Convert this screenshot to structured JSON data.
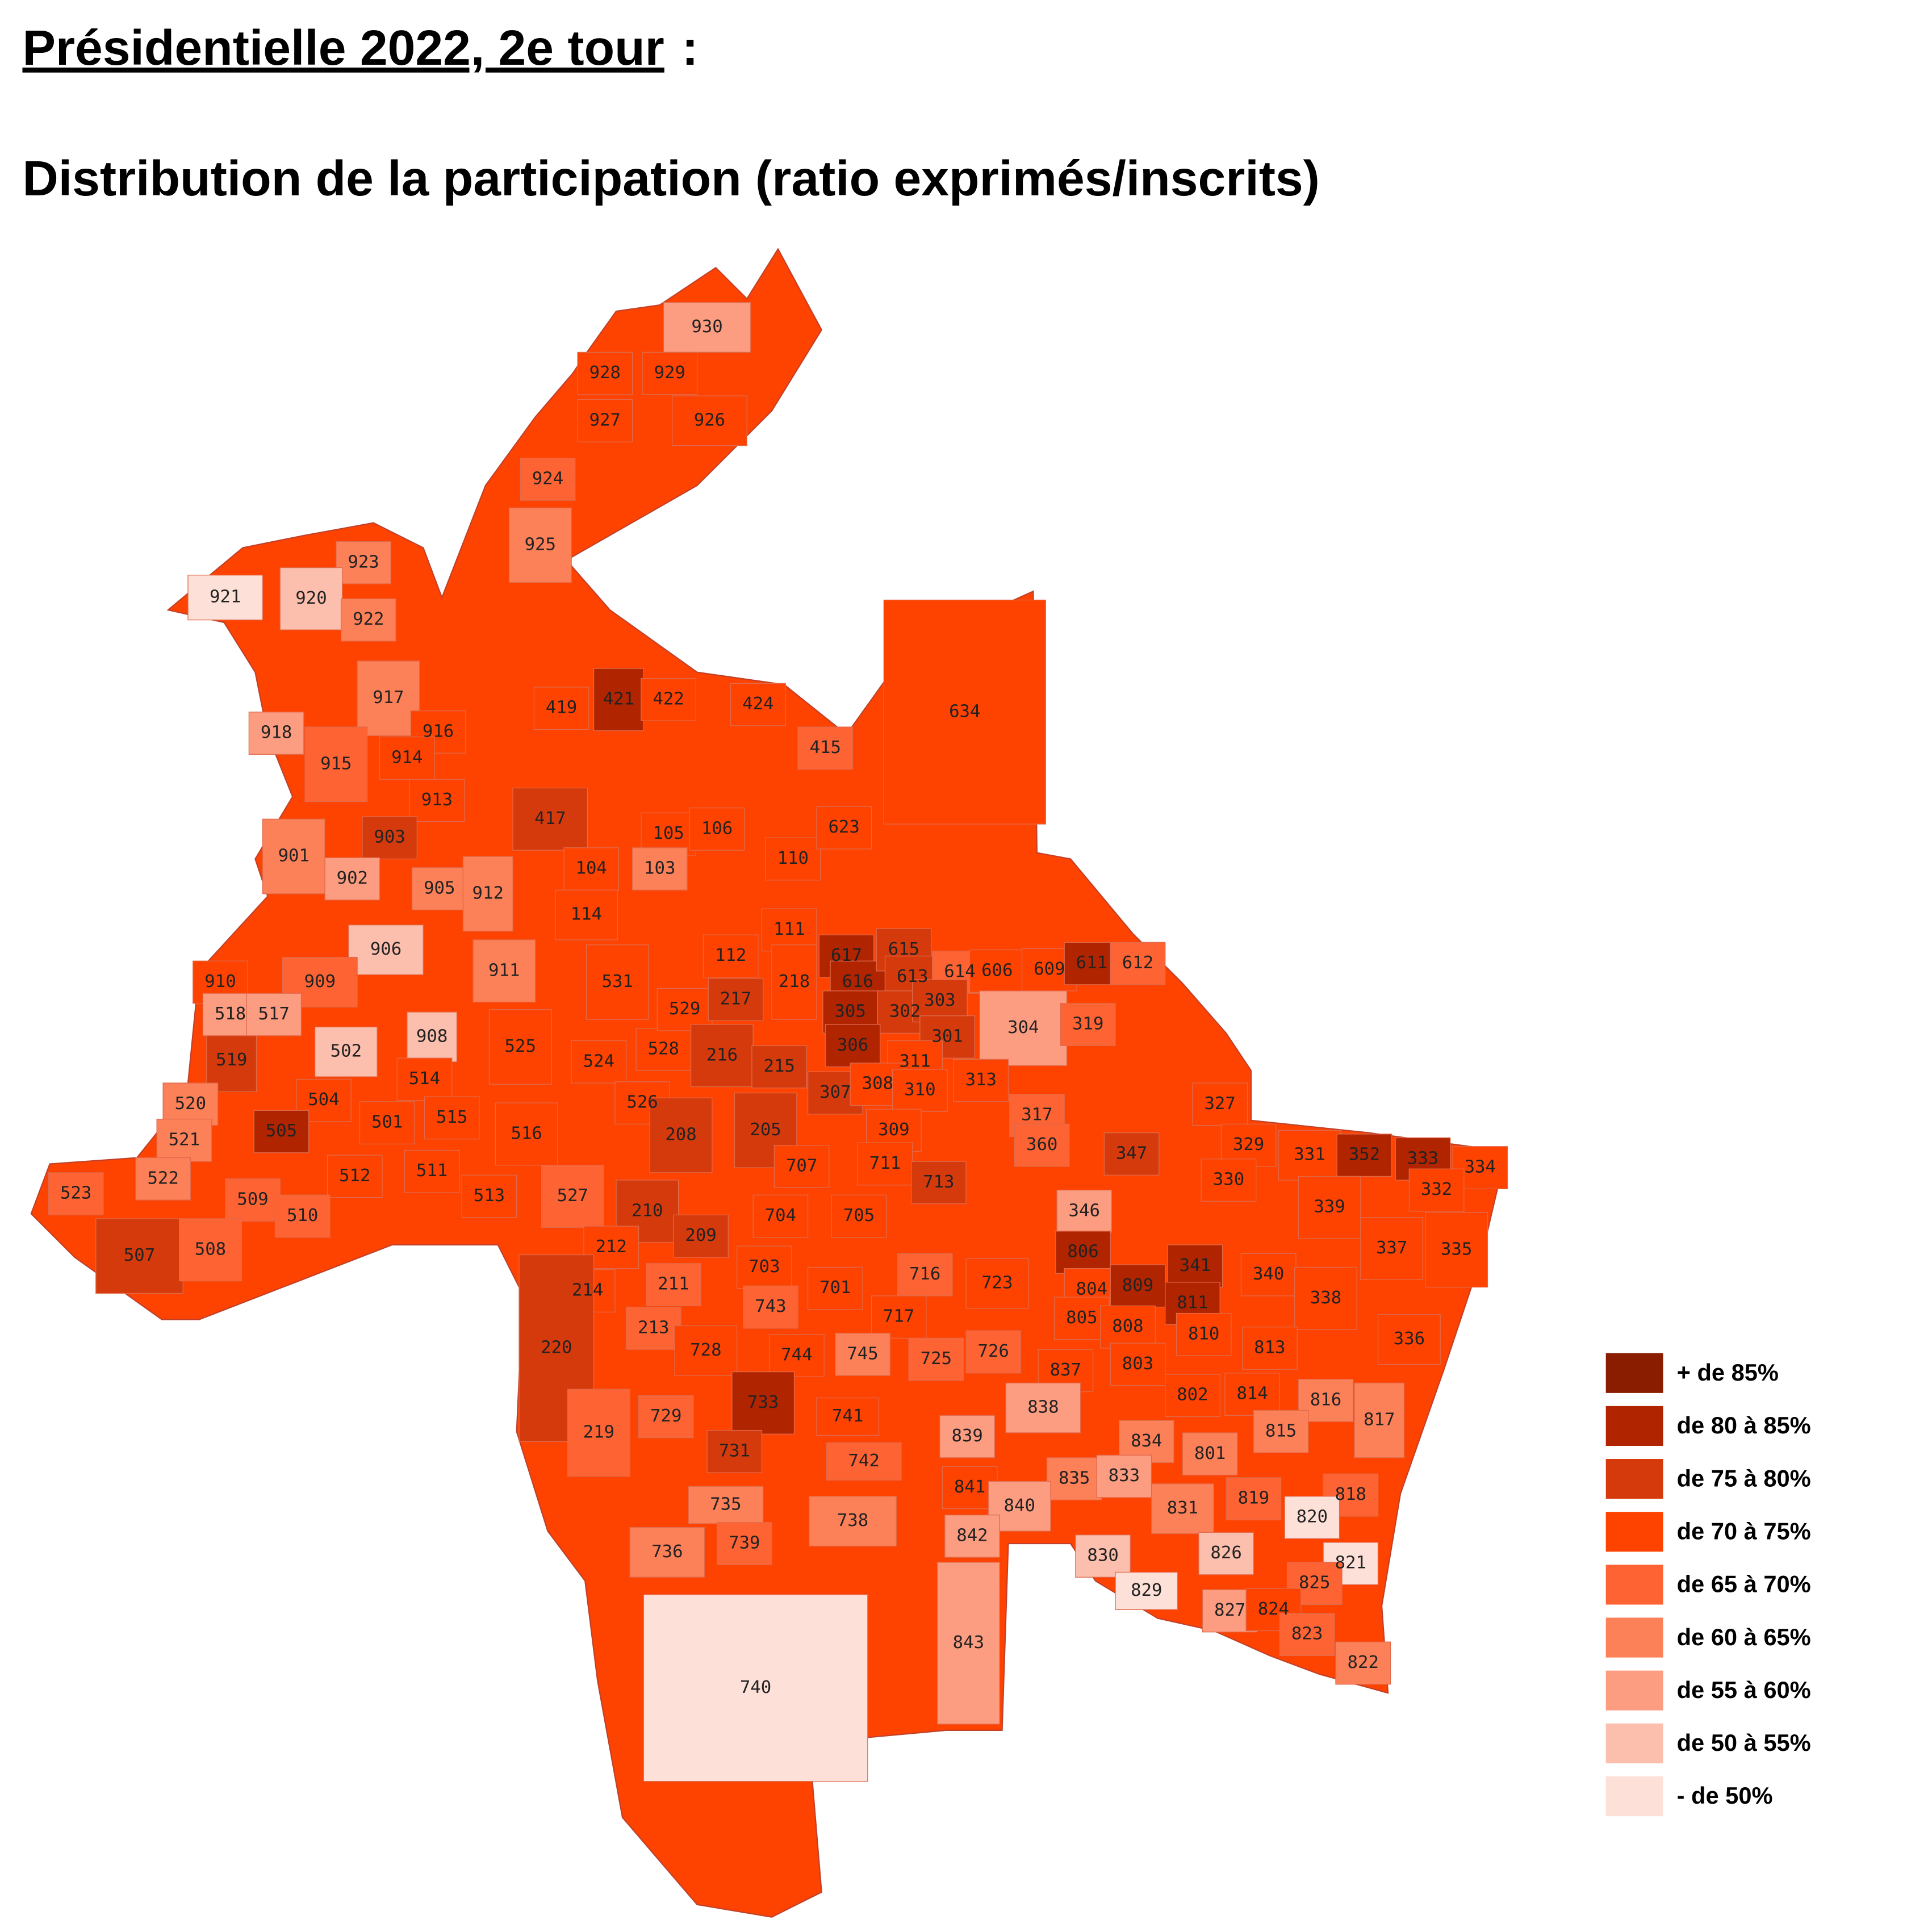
{
  "header": {
    "title": "Présidentielle 2022, 2e tour",
    "title_suffix": ":",
    "subtitle": "Distribution de la participation (ratio exprimés/inscrits)"
  },
  "legend": [
    {
      "label": "+ de 85%",
      "color": "#8a1c00"
    },
    {
      "label": "de 80 à 85%",
      "color": "#b02400"
    },
    {
      "label": "de 75 à 80%",
      "color": "#d53a0c"
    },
    {
      "label": "de 70 à 75%",
      "color": "#fe4200"
    },
    {
      "label": "de 65 à 70%",
      "color": "#fd6333"
    },
    {
      "label": "de 60 à 65%",
      "color": "#fc8058"
    },
    {
      "label": "de 55 à 60%",
      "color": "#fc9c80"
    },
    {
      "label": "de 50 à 55%",
      "color": "#fcbead"
    },
    {
      "label": "- de 50%",
      "color": "#fde0d8"
    }
  ],
  "regions": [
    {
      "label": "930",
      "class": 6
    },
    {
      "label": "928",
      "class": 3
    },
    {
      "label": "929",
      "class": 3
    },
    {
      "label": "927",
      "class": 3
    },
    {
      "label": "926",
      "class": 3
    },
    {
      "label": "924",
      "class": 4
    },
    {
      "label": "925",
      "class": 5
    },
    {
      "label": "923",
      "class": 5
    },
    {
      "label": "921",
      "class": 8
    },
    {
      "label": "920",
      "class": 7
    },
    {
      "label": "922",
      "class": 5
    },
    {
      "label": "917",
      "class": 5
    },
    {
      "label": "916",
      "class": 3
    },
    {
      "label": "914",
      "class": 3
    },
    {
      "label": "915",
      "class": 4
    },
    {
      "label": "918",
      "class": 6
    },
    {
      "label": "913",
      "class": 3
    },
    {
      "label": "903",
      "class": 2
    },
    {
      "label": "901",
      "class": 5
    },
    {
      "label": "902",
      "class": 6
    },
    {
      "label": "905",
      "class": 5
    },
    {
      "label": "912",
      "class": 5
    },
    {
      "label": "906",
      "class": 7
    },
    {
      "label": "911",
      "class": 5
    },
    {
      "label": "909",
      "class": 4
    },
    {
      "label": "910",
      "class": 3
    },
    {
      "label": "908",
      "class": 7
    },
    {
      "label": "519",
      "class": 2
    },
    {
      "label": "518",
      "class": 6
    },
    {
      "label": "517",
      "class": 6
    },
    {
      "label": "502",
      "class": 7
    },
    {
      "label": "514",
      "class": 3
    },
    {
      "label": "504",
      "class": 3
    },
    {
      "label": "520",
      "class": 5
    },
    {
      "label": "505",
      "class": 1
    },
    {
      "label": "501",
      "class": 3
    },
    {
      "label": "515",
      "class": 3
    },
    {
      "label": "516",
      "class": 3
    },
    {
      "label": "511",
      "class": 3
    },
    {
      "label": "512",
      "class": 3
    },
    {
      "label": "513",
      "class": 3
    },
    {
      "label": "521",
      "class": 5
    },
    {
      "label": "522",
      "class": 5
    },
    {
      "label": "523",
      "class": 4
    },
    {
      "label": "509",
      "class": 4
    },
    {
      "label": "510",
      "class": 4
    },
    {
      "label": "507",
      "class": 2
    },
    {
      "label": "508",
      "class": 4
    },
    {
      "label": "527",
      "class": 4
    },
    {
      "label": "525",
      "class": 3
    },
    {
      "label": "524",
      "class": 3
    },
    {
      "label": "526",
      "class": 3
    },
    {
      "label": "528",
      "class": 3
    },
    {
      "label": "529",
      "class": 3
    },
    {
      "label": "531",
      "class": 3
    },
    {
      "label": "419",
      "class": 3
    },
    {
      "label": "421",
      "class": 1
    },
    {
      "label": "422",
      "class": 3
    },
    {
      "label": "424",
      "class": 3
    },
    {
      "label": "415",
      "class": 4
    },
    {
      "label": "417",
      "class": 2
    },
    {
      "label": "105",
      "class": 3
    },
    {
      "label": "106",
      "class": 3
    },
    {
      "label": "103",
      "class": 5
    },
    {
      "label": "104",
      "class": 3
    },
    {
      "label": "110",
      "class": 3
    },
    {
      "label": "114",
      "class": 3
    },
    {
      "label": "111",
      "class": 3
    },
    {
      "label": "112",
      "class": 3
    },
    {
      "label": "218",
      "class": 3
    },
    {
      "label": "217",
      "class": 2
    },
    {
      "label": "216",
      "class": 2
    },
    {
      "label": "215",
      "class": 2
    },
    {
      "label": "208",
      "class": 2
    },
    {
      "label": "205",
      "class": 2
    },
    {
      "label": "210",
      "class": 2
    },
    {
      "label": "209",
      "class": 2
    },
    {
      "label": "212",
      "class": 3
    },
    {
      "label": "214",
      "class": 3
    },
    {
      "label": "211",
      "class": 4
    },
    {
      "label": "213",
      "class": 4
    },
    {
      "label": "220",
      "class": 2
    },
    {
      "label": "219",
      "class": 4
    },
    {
      "label": "623",
      "class": 3
    },
    {
      "label": "634",
      "class": 3
    },
    {
      "label": "617",
      "class": 1
    },
    {
      "label": "616",
      "class": 1
    },
    {
      "label": "615",
      "class": 2
    },
    {
      "label": "613",
      "class": 2
    },
    {
      "label": "614",
      "class": 4
    },
    {
      "label": "606",
      "class": 3
    },
    {
      "label": "609",
      "class": 3
    },
    {
      "label": "611",
      "class": 1
    },
    {
      "label": "612",
      "class": 4
    },
    {
      "label": "305",
      "class": 1
    },
    {
      "label": "302",
      "class": 2
    },
    {
      "label": "303",
      "class": 2
    },
    {
      "label": "306",
      "class": 1
    },
    {
      "label": "301",
      "class": 2
    },
    {
      "label": "304",
      "class": 6
    },
    {
      "label": "319",
      "class": 4
    },
    {
      "label": "311",
      "class": 3
    },
    {
      "label": "313",
      "class": 3
    },
    {
      "label": "307",
      "class": 2
    },
    {
      "label": "308",
      "class": 3
    },
    {
      "label": "310",
      "class": 3
    },
    {
      "label": "309",
      "class": 3
    },
    {
      "label": "317",
      "class": 4
    },
    {
      "label": "327",
      "class": 3
    },
    {
      "label": "360",
      "class": 4
    },
    {
      "label": "707",
      "class": 3
    },
    {
      "label": "711",
      "class": 3
    },
    {
      "label": "713",
      "class": 2
    },
    {
      "label": "329",
      "class": 3
    },
    {
      "label": "331",
      "class": 3
    },
    {
      "label": "352",
      "class": 1
    },
    {
      "label": "333",
      "class": 1
    },
    {
      "label": "334",
      "class": 3
    },
    {
      "label": "347",
      "class": 2
    },
    {
      "label": "330",
      "class": 3
    },
    {
      "label": "332",
      "class": 3
    },
    {
      "label": "339",
      "class": 3
    },
    {
      "label": "346",
      "class": 6
    },
    {
      "label": "704",
      "class": 3
    },
    {
      "label": "705",
      "class": 3
    },
    {
      "label": "337",
      "class": 3
    },
    {
      "label": "335",
      "class": 3
    },
    {
      "label": "806",
      "class": 1
    },
    {
      "label": "703",
      "class": 3
    },
    {
      "label": "716",
      "class": 4
    },
    {
      "label": "723",
      "class": 3
    },
    {
      "label": "341",
      "class": 1
    },
    {
      "label": "340",
      "class": 3
    },
    {
      "label": "804",
      "class": 3
    },
    {
      "label": "809",
      "class": 1
    },
    {
      "label": "811",
      "class": 1
    },
    {
      "label": "338",
      "class": 3
    },
    {
      "label": "743",
      "class": 4
    },
    {
      "label": "701",
      "class": 3
    },
    {
      "label": "717",
      "class": 3
    },
    {
      "label": "805",
      "class": 3
    },
    {
      "label": "808",
      "class": 3
    },
    {
      "label": "336",
      "class": 3
    },
    {
      "label": "810",
      "class": 3
    },
    {
      "label": "813",
      "class": 3
    },
    {
      "label": "728",
      "class": 3
    },
    {
      "label": "744",
      "class": 3
    },
    {
      "label": "745",
      "class": 5
    },
    {
      "label": "725",
      "class": 4
    },
    {
      "label": "726",
      "class": 4
    },
    {
      "label": "837",
      "class": 3
    },
    {
      "label": "803",
      "class": 3
    },
    {
      "label": "802",
      "class": 3
    },
    {
      "label": "814",
      "class": 3
    },
    {
      "label": "816",
      "class": 5
    },
    {
      "label": "838",
      "class": 6
    },
    {
      "label": "733",
      "class": 1
    },
    {
      "label": "741",
      "class": 3
    },
    {
      "label": "729",
      "class": 4
    },
    {
      "label": "817",
      "class": 5
    },
    {
      "label": "815",
      "class": 5
    },
    {
      "label": "839",
      "class": 6
    },
    {
      "label": "834",
      "class": 5
    },
    {
      "label": "801",
      "class": 5
    },
    {
      "label": "742",
      "class": 4
    },
    {
      "label": "731",
      "class": 2
    },
    {
      "label": "835",
      "class": 5
    },
    {
      "label": "833",
      "class": 6
    },
    {
      "label": "841",
      "class": 3
    },
    {
      "label": "840",
      "class": 6
    },
    {
      "label": "819",
      "class": 4
    },
    {
      "label": "818",
      "class": 4
    },
    {
      "label": "831",
      "class": 5
    },
    {
      "label": "735",
      "class": 5
    },
    {
      "label": "738",
      "class": 5
    },
    {
      "label": "820",
      "class": 8
    },
    {
      "label": "842",
      "class": 6
    },
    {
      "label": "830",
      "class": 7
    },
    {
      "label": "826",
      "class": 7
    },
    {
      "label": "821",
      "class": 8
    },
    {
      "label": "736",
      "class": 5
    },
    {
      "label": "739",
      "class": 4
    },
    {
      "label": "829",
      "class": 8
    },
    {
      "label": "825",
      "class": 4
    },
    {
      "label": "827",
      "class": 6
    },
    {
      "label": "824",
      "class": 3
    },
    {
      "label": "823",
      "class": 4
    },
    {
      "label": "843",
      "class": 6
    },
    {
      "label": "822",
      "class": 5
    },
    {
      "label": "740",
      "class": 8
    }
  ]
}
